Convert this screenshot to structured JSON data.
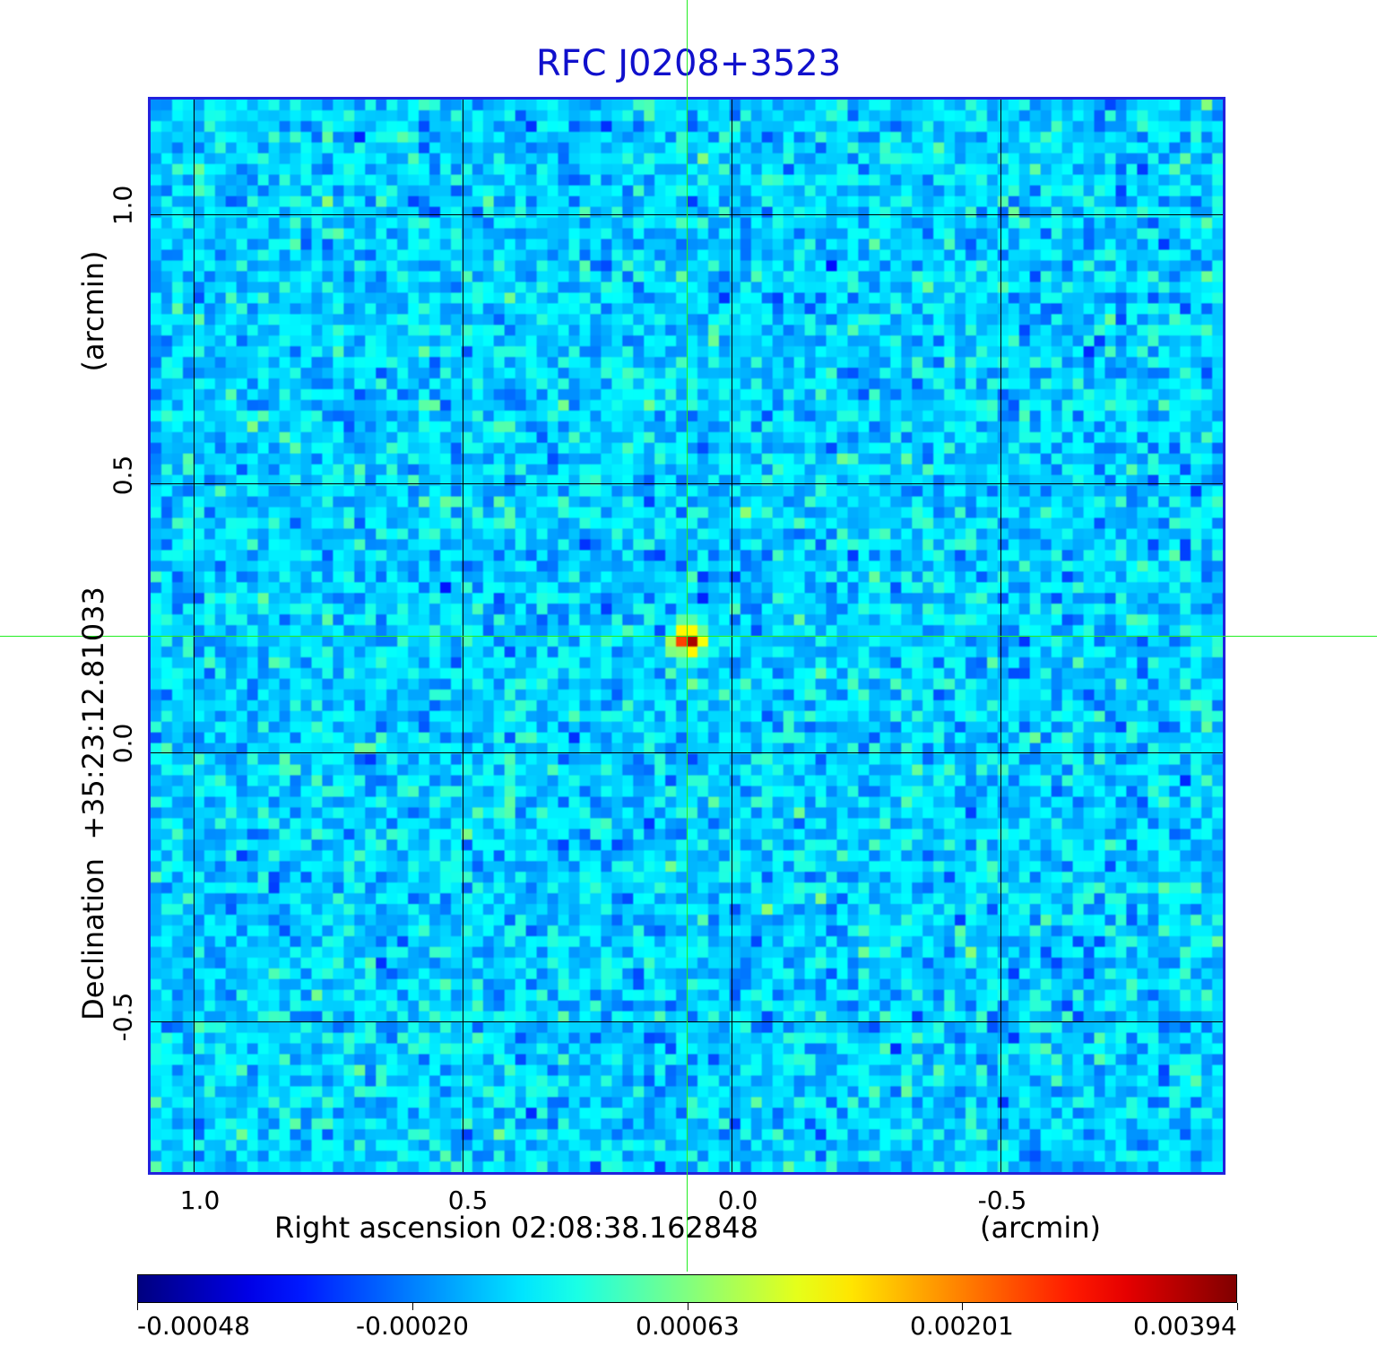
{
  "chart_data": {
    "type": "heatmap",
    "title": "RFC J0208+3523",
    "xlabel": "Right ascension  02:08:38.162848",
    "xunit": "(arcmin)",
    "ylabel": "Declination  +35:23:12.81033",
    "yunit": "(arcmin)",
    "xticks": [
      "1.0",
      "0.5",
      "0.0",
      "-0.5"
    ],
    "yticks": [
      "1.0",
      "0.5",
      "0.0",
      "-0.5"
    ],
    "colorbar": {
      "ticks": [
        "-0.00048",
        "-0.00020",
        "0.00063",
        "0.00201",
        "0.00394"
      ],
      "min": -0.00048,
      "max": 0.00394
    },
    "grid": true,
    "colormap": "jet",
    "source_peak": 0.00394
  },
  "colors": {
    "title": "#1010cc",
    "frame": "#2222dd",
    "crosshair": "#22ee22",
    "grid": "#000000"
  }
}
